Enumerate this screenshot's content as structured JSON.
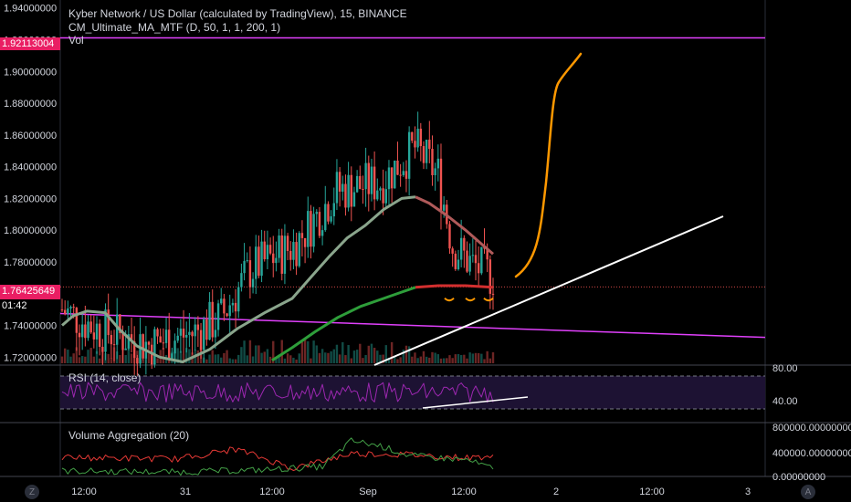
{
  "header": {
    "title": "Kyber Network / US Dollar (calculated by TradingView), 15, BINANCE",
    "indicator": "CM_Ultimate_MA_MTF (D, 50, 1, 1, 200, 1)",
    "volume_label": "Vol"
  },
  "price_axis": {
    "ticks": [
      "1.94000000",
      "1.92000000",
      "1.90000000",
      "1.88000000",
      "1.86000000",
      "1.84000000",
      "1.82000000",
      "1.80000000",
      "1.78000000",
      "1.76000000",
      "1.74000000",
      "1.72000000"
    ],
    "top_tag": "1.92113004",
    "current_tag": "1.76425649",
    "countdown": "01:42"
  },
  "rsi": {
    "label": "RSI (14, close)",
    "ticks": [
      "80.00",
      "40.00"
    ]
  },
  "vol_agg": {
    "label": "Volume Aggregation (20)",
    "ticks": [
      "800000.00000000",
      "400000.00000000",
      "0.00000000"
    ]
  },
  "time_axis": {
    "ticks": [
      "12:00",
      "31",
      "12:00",
      "Sep",
      "12:00",
      "2",
      "12:00",
      "3"
    ]
  },
  "corner": {
    "left": "Z",
    "right": "A"
  },
  "colors": {
    "up": "#26a69a",
    "down": "#ef5350",
    "magenta": "#e040fb",
    "orange": "#ff9800",
    "rsi": "#9c27b0",
    "tag": "#e91e63"
  },
  "chart_data": [
    {
      "type": "line",
      "title": "Kyber Network / US Dollar (calculated by TradingView), 15, BINANCE",
      "ylim": [
        1.715,
        1.945
      ],
      "x_ticks": [
        "12:00",
        "31",
        "12:00",
        "Sep",
        "12:00",
        "2",
        "12:00",
        "3"
      ],
      "series": [
        {
          "name": "",
          "x": [
            "Aug 30 12:00",
            "Aug 31 00:00",
            "Aug 31 12:00",
            "Sep 1 00:00",
            "Sep 1 12:00"
          ],
          "values": [
            1.745,
            1.735,
            1.78,
            1.85,
            1.772
          ]
        }
      ],
      "current_price": 1.76425649,
      "resistance_level": 1.92113004
    },
    {
      "type": "line",
      "title": "RSI (14, close)",
      "ylim": [
        20,
        90
      ],
      "ticks": [
        80,
        40
      ]
    },
    {
      "type": "line",
      "title": "Volume Aggregation (20)",
      "ylim": [
        0,
        900000
      ],
      "ticks": [
        800000,
        400000,
        0
      ],
      "series": [
        {
          "name": "",
          "values": [
            200000,
            220000,
            650000,
            380000,
            220000
          ]
        },
        {
          "name": "",
          "values": [
            400000,
            150000,
            450000,
            300000,
            380000
          ]
        }
      ]
    }
  ]
}
